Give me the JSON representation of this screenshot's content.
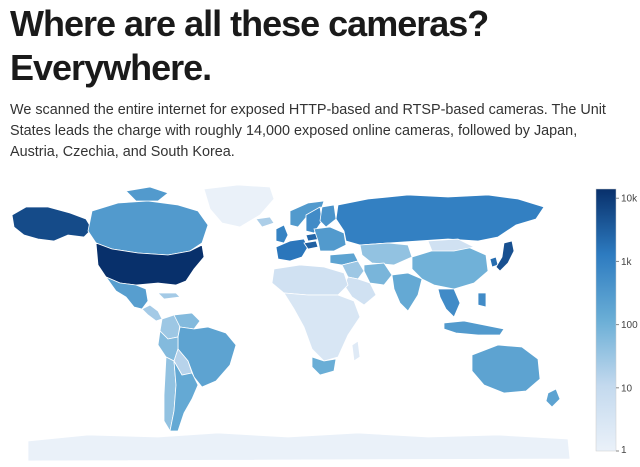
{
  "headline": {
    "line1": "Where are all these cameras?",
    "line2": "Everywhere."
  },
  "lede": {
    "line1": "We scanned the entire internet for exposed HTTP-based and RTSP-based cameras. The Unit",
    "line2": "States leads the charge with roughly 14,000 exposed online cameras, followed by Japan,",
    "line3": "Austria, Czechia, and South Korea."
  },
  "chart_data": {
    "type": "choropleth",
    "scale": "log",
    "colorbar": {
      "ticks": [
        {
          "value": 10000,
          "label": "10k"
        },
        {
          "value": 1000,
          "label": "1k"
        },
        {
          "value": 100,
          "label": "100"
        },
        {
          "value": 10,
          "label": "10"
        },
        {
          "value": 1,
          "label": "1"
        }
      ],
      "range": [
        1,
        14000
      ],
      "color_low": "#eaf1f9",
      "color_high": "#08306b"
    },
    "regions": [
      {
        "name": "Alaska",
        "value": 6000
      },
      {
        "name": "Canada",
        "value": 300
      },
      {
        "name": "Greenland",
        "value": 1
      },
      {
        "name": "United States",
        "value": 14000
      },
      {
        "name": "Mexico",
        "value": 250
      },
      {
        "name": "Central America",
        "value": 25
      },
      {
        "name": "Colombia",
        "value": 30
      },
      {
        "name": "Venezuela",
        "value": 60
      },
      {
        "name": "Brazil",
        "value": 200
      },
      {
        "name": "Peru",
        "value": 60
      },
      {
        "name": "Bolivia",
        "value": 15
      },
      {
        "name": "Argentina",
        "value": 150
      },
      {
        "name": "Chile",
        "value": 40
      },
      {
        "name": "Iceland",
        "value": 20
      },
      {
        "name": "Norway",
        "value": 300
      },
      {
        "name": "Sweden",
        "value": 600
      },
      {
        "name": "Finland",
        "value": 400
      },
      {
        "name": "United Kingdom",
        "value": 900
      },
      {
        "name": "Western Europe",
        "value": 1500
      },
      {
        "name": "Austria",
        "value": 3000
      },
      {
        "name": "Czechia",
        "value": 2500
      },
      {
        "name": "Eastern Europe",
        "value": 300
      },
      {
        "name": "Russia",
        "value": 1000
      },
      {
        "name": "Kazakhstan",
        "value": 40
      },
      {
        "name": "Turkey",
        "value": 200
      },
      {
        "name": "Middle East",
        "value": 30
      },
      {
        "name": "Saudi Arabia",
        "value": 5
      },
      {
        "name": "Iran",
        "value": 80
      },
      {
        "name": "India",
        "value": 150
      },
      {
        "name": "China",
        "value": 100
      },
      {
        "name": "Mongolia",
        "value": 5
      },
      {
        "name": "South Korea",
        "value": 2000
      },
      {
        "name": "Japan",
        "value": 5000
      },
      {
        "name": "Southeast Asia",
        "value": 600
      },
      {
        "name": "Indonesia",
        "value": 300
      },
      {
        "name": "Australia",
        "value": 200
      },
      {
        "name": "New Zealand",
        "value": 200
      },
      {
        "name": "North Africa",
        "value": 5
      },
      {
        "name": "Africa",
        "value": 3
      },
      {
        "name": "South Africa",
        "value": 120
      },
      {
        "name": "Madagascar",
        "value": 2
      },
      {
        "name": "Antarctica",
        "value": 1
      }
    ]
  }
}
